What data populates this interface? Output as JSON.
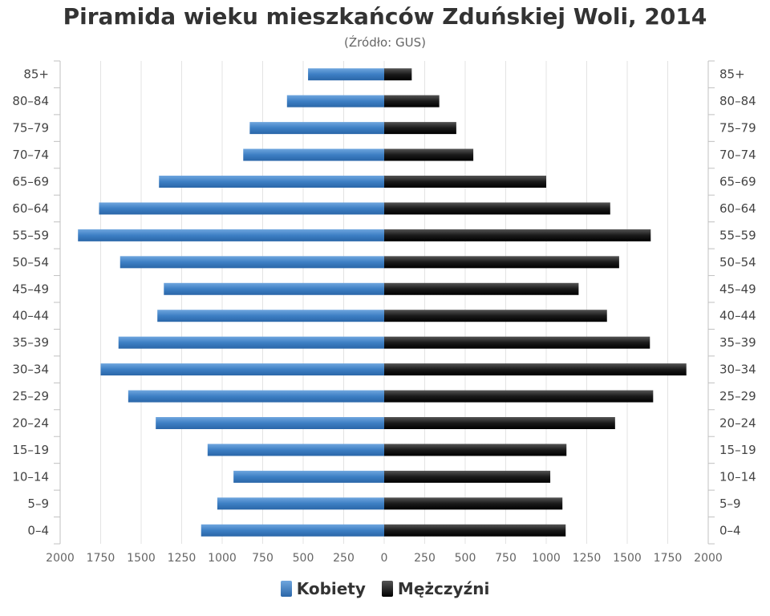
{
  "chart_data": {
    "type": "bar",
    "orientation": "horizontal",
    "title": "Piramida wieku mieszkańców Zduńskiej Woli, 2014",
    "subtitle": "(Źródło: GUS)",
    "categories": [
      "85+",
      "80–84",
      "75–79",
      "70–74",
      "65–69",
      "60–64",
      "55–59",
      "50–54",
      "45–49",
      "40–44",
      "35–39",
      "30–34",
      "25–29",
      "20–24",
      "15–19",
      "10–14",
      "5–9",
      "0–4"
    ],
    "x_ticks": [
      "2000",
      "1750",
      "1500",
      "1250",
      "1000",
      "750",
      "500",
      "250",
      "0",
      "250",
      "500",
      "750",
      "1000",
      "1250",
      "1500",
      "1750",
      "2000"
    ],
    "xlim": [
      -2000,
      2000
    ],
    "grid": true,
    "legend_position": "bottom-center",
    "series": [
      {
        "name": "Kobiety",
        "color": "#3d7fc4",
        "values": [
          470,
          600,
          830,
          870,
          1390,
          1760,
          1890,
          1630,
          1360,
          1400,
          1640,
          1750,
          1580,
          1410,
          1090,
          930,
          1030,
          1130
        ]
      },
      {
        "name": "Mężczyźni",
        "color": "#1a1a1a",
        "values": [
          170,
          340,
          445,
          550,
          1000,
          1395,
          1645,
          1450,
          1200,
          1375,
          1640,
          1865,
          1660,
          1425,
          1125,
          1025,
          1100,
          1120
        ]
      }
    ]
  }
}
